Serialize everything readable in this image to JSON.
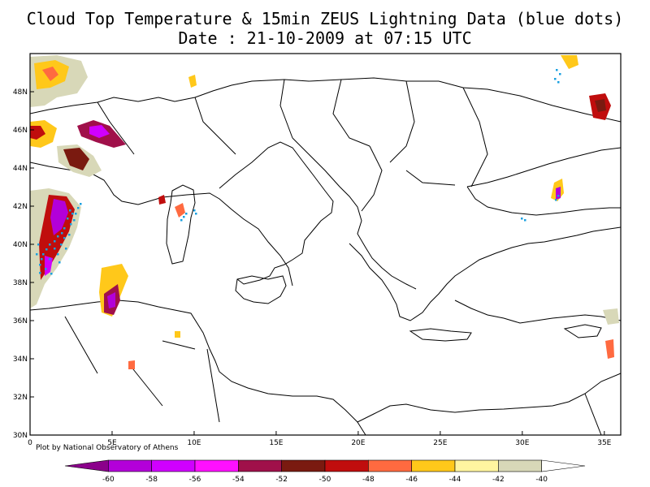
{
  "title_line1": "Cloud Top Temperature & 15min ZEUS Lightning Data (blue dots)",
  "title_line2": "Date : 21-10-2009 at 07:15 UTC",
  "credit": "Plot by National Observatory of Athens",
  "map": {
    "lon_range": [
      0,
      36
    ],
    "lat_range": [
      30,
      50
    ],
    "lon_ticks": [
      {
        "value": 0,
        "label": "0"
      },
      {
        "value": 5,
        "label": "5E"
      },
      {
        "value": 10,
        "label": "10E"
      },
      {
        "value": 15,
        "label": "15E"
      },
      {
        "value": 20,
        "label": "20E"
      },
      {
        "value": 25,
        "label": "25E"
      },
      {
        "value": 30,
        "label": "30E"
      },
      {
        "value": 35,
        "label": "35E"
      }
    ],
    "lat_ticks": [
      {
        "value": 30,
        "label": "30N"
      },
      {
        "value": 32,
        "label": "32N"
      },
      {
        "value": 34,
        "label": "34N"
      },
      {
        "value": 36,
        "label": "36N"
      },
      {
        "value": 38,
        "label": "38N"
      },
      {
        "value": 40,
        "label": "40N"
      },
      {
        "value": 42,
        "label": "42N"
      },
      {
        "value": 44,
        "label": "44N"
      },
      {
        "value": 46,
        "label": "46N"
      },
      {
        "value": 48,
        "label": "48N"
      }
    ]
  },
  "colorbar": {
    "colors": [
      "#8b008b",
      "#b300d9",
      "#d000ff",
      "#ff10ff",
      "#a0104a",
      "#7a1a10",
      "#c00d0d",
      "#ff6a40",
      "#ffc81a",
      "#fff5a0",
      "#d8d8b8",
      "#ffffff"
    ],
    "labels": [
      "-60",
      "-58",
      "-56",
      "-54",
      "-52",
      "-50",
      "-48",
      "-46",
      "-44",
      "-42",
      "-40"
    ]
  },
  "lightning_color": "#1aa0e0"
}
